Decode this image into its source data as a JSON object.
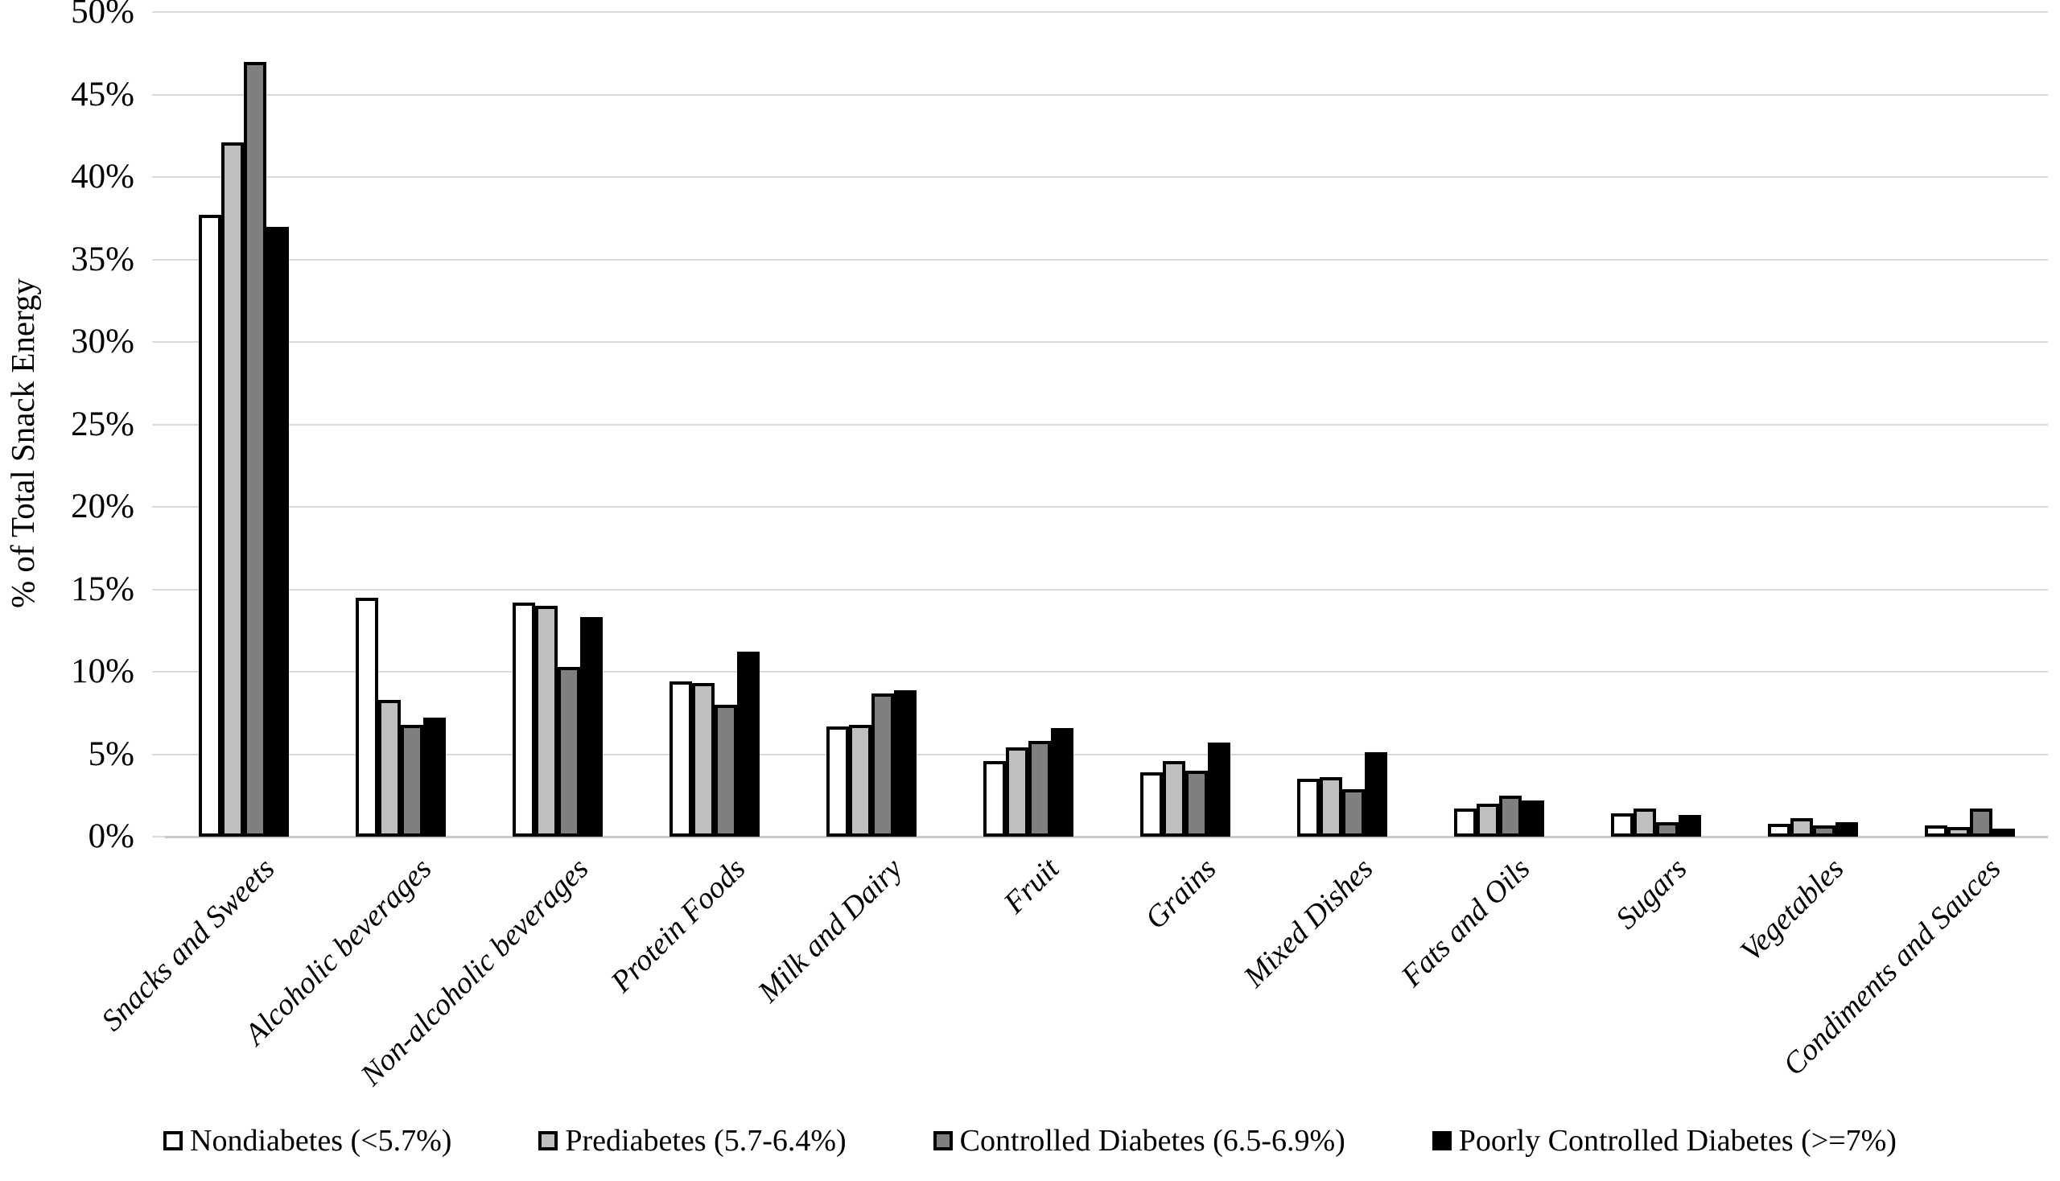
{
  "chart_data": {
    "type": "bar",
    "title": "",
    "xlabel": "",
    "ylabel": "% of Total Snack Energy",
    "ylim": [
      0,
      50
    ],
    "ytick_step": 5,
    "ytick_labels": [
      "0%",
      "5%",
      "10%",
      "15%",
      "20%",
      "25%",
      "30%",
      "35%",
      "40%",
      "45%",
      "50%"
    ],
    "grid": "horizontal",
    "legend_position": "bottom",
    "categories": [
      "Snacks and Sweets",
      "Alcoholic beverages",
      "Non-alcoholic beverages",
      "Protein Foods",
      "Milk and Dairy",
      "Fruit",
      "Grains",
      "Mixed Dishes",
      "Fats and Oils",
      "Sugars",
      "Vegetables",
      "Condiments and Sauces"
    ],
    "series": [
      {
        "name": "Nondiabetes (<5.7%)",
        "fill": "#ffffff",
        "border": "#000000",
        "values": [
          37.7,
          14.5,
          14.2,
          9.4,
          6.7,
          4.6,
          3.9,
          3.5,
          1.7,
          1.4,
          0.8,
          0.7
        ]
      },
      {
        "name": "Prediabetes (5.7-6.4%)",
        "fill": "#bfbfbf",
        "border": "#000000",
        "values": [
          42.1,
          8.3,
          14.0,
          9.3,
          6.8,
          5.4,
          4.6,
          3.6,
          2.0,
          1.7,
          1.1,
          0.6
        ]
      },
      {
        "name": "Controlled Diabetes (6.5-6.9%)",
        "fill": "#7f7f7f",
        "border": "#000000",
        "values": [
          47.0,
          6.8,
          10.3,
          8.0,
          8.7,
          5.8,
          4.0,
          2.9,
          2.5,
          0.9,
          0.7,
          1.7
        ]
      },
      {
        "name": "Poorly Controlled Diabetes (>=7%)",
        "fill": "#000000",
        "border": "#000000",
        "values": [
          37.0,
          7.2,
          13.3,
          11.2,
          8.9,
          6.6,
          5.7,
          5.1,
          2.2,
          1.3,
          0.9,
          0.5
        ]
      }
    ],
    "colors": {
      "gridline": "#d9d9d9",
      "background": "#ffffff",
      "text": "#000000"
    }
  }
}
